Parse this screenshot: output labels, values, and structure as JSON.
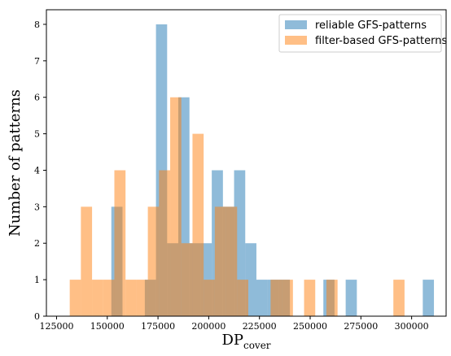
{
  "chart_data": {
    "type": "bar",
    "subtype": "overlapping-histogram",
    "title": "",
    "xlabel": "DP",
    "xlabel_subscript": "cover",
    "ylabel": "Number of patterns",
    "xlim": [
      120000,
      317000
    ],
    "ylim": [
      0,
      8.4
    ],
    "xticks": [
      125000,
      150000,
      175000,
      200000,
      225000,
      250000,
      275000,
      300000
    ],
    "yticks": [
      0,
      1,
      2,
      3,
      4,
      5,
      6,
      7,
      8
    ],
    "grid": false,
    "legend_position": "top-right",
    "series": [
      {
        "name": "reliable GFS-patterns",
        "color": "#1f77b4",
        "opacity": 0.5,
        "bin_width": 5500,
        "bins": [
          {
            "x0": 152000,
            "count": 3
          },
          {
            "x0": 168500,
            "count": 1
          },
          {
            "x0": 174000,
            "count": 8
          },
          {
            "x0": 179500,
            "count": 2
          },
          {
            "x0": 185000,
            "count": 6
          },
          {
            "x0": 190500,
            "count": 2
          },
          {
            "x0": 196000,
            "count": 2
          },
          {
            "x0": 201500,
            "count": 4
          },
          {
            "x0": 207000,
            "count": 3
          },
          {
            "x0": 212500,
            "count": 4
          },
          {
            "x0": 218000,
            "count": 2
          },
          {
            "x0": 223500,
            "count": 1
          },
          {
            "x0": 229000,
            "count": 1
          },
          {
            "x0": 234500,
            "count": 1
          },
          {
            "x0": 256500,
            "count": 1
          },
          {
            "x0": 267500,
            "count": 1
          },
          {
            "x0": 305500,
            "count": 1
          }
        ]
      },
      {
        "name": "filter-based GFS-patterns",
        "color": "#ff7f0e",
        "opacity": 0.5,
        "bin_width": 5500,
        "bins": [
          {
            "x0": 131500,
            "count": 1
          },
          {
            "x0": 137000,
            "count": 3
          },
          {
            "x0": 142500,
            "count": 1
          },
          {
            "x0": 148000,
            "count": 1
          },
          {
            "x0": 153500,
            "count": 4
          },
          {
            "x0": 159000,
            "count": 1
          },
          {
            "x0": 164500,
            "count": 1
          },
          {
            "x0": 170000,
            "count": 3
          },
          {
            "x0": 175500,
            "count": 4
          },
          {
            "x0": 181000,
            "count": 6
          },
          {
            "x0": 186500,
            "count": 2
          },
          {
            "x0": 192000,
            "count": 5
          },
          {
            "x0": 197500,
            "count": 1
          },
          {
            "x0": 203000,
            "count": 3
          },
          {
            "x0": 208500,
            "count": 3
          },
          {
            "x0": 214000,
            "count": 1
          },
          {
            "x0": 230500,
            "count": 1
          },
          {
            "x0": 236000,
            "count": 1
          },
          {
            "x0": 247000,
            "count": 1
          },
          {
            "x0": 258000,
            "count": 1
          },
          {
            "x0": 291000,
            "count": 1
          }
        ]
      }
    ]
  }
}
